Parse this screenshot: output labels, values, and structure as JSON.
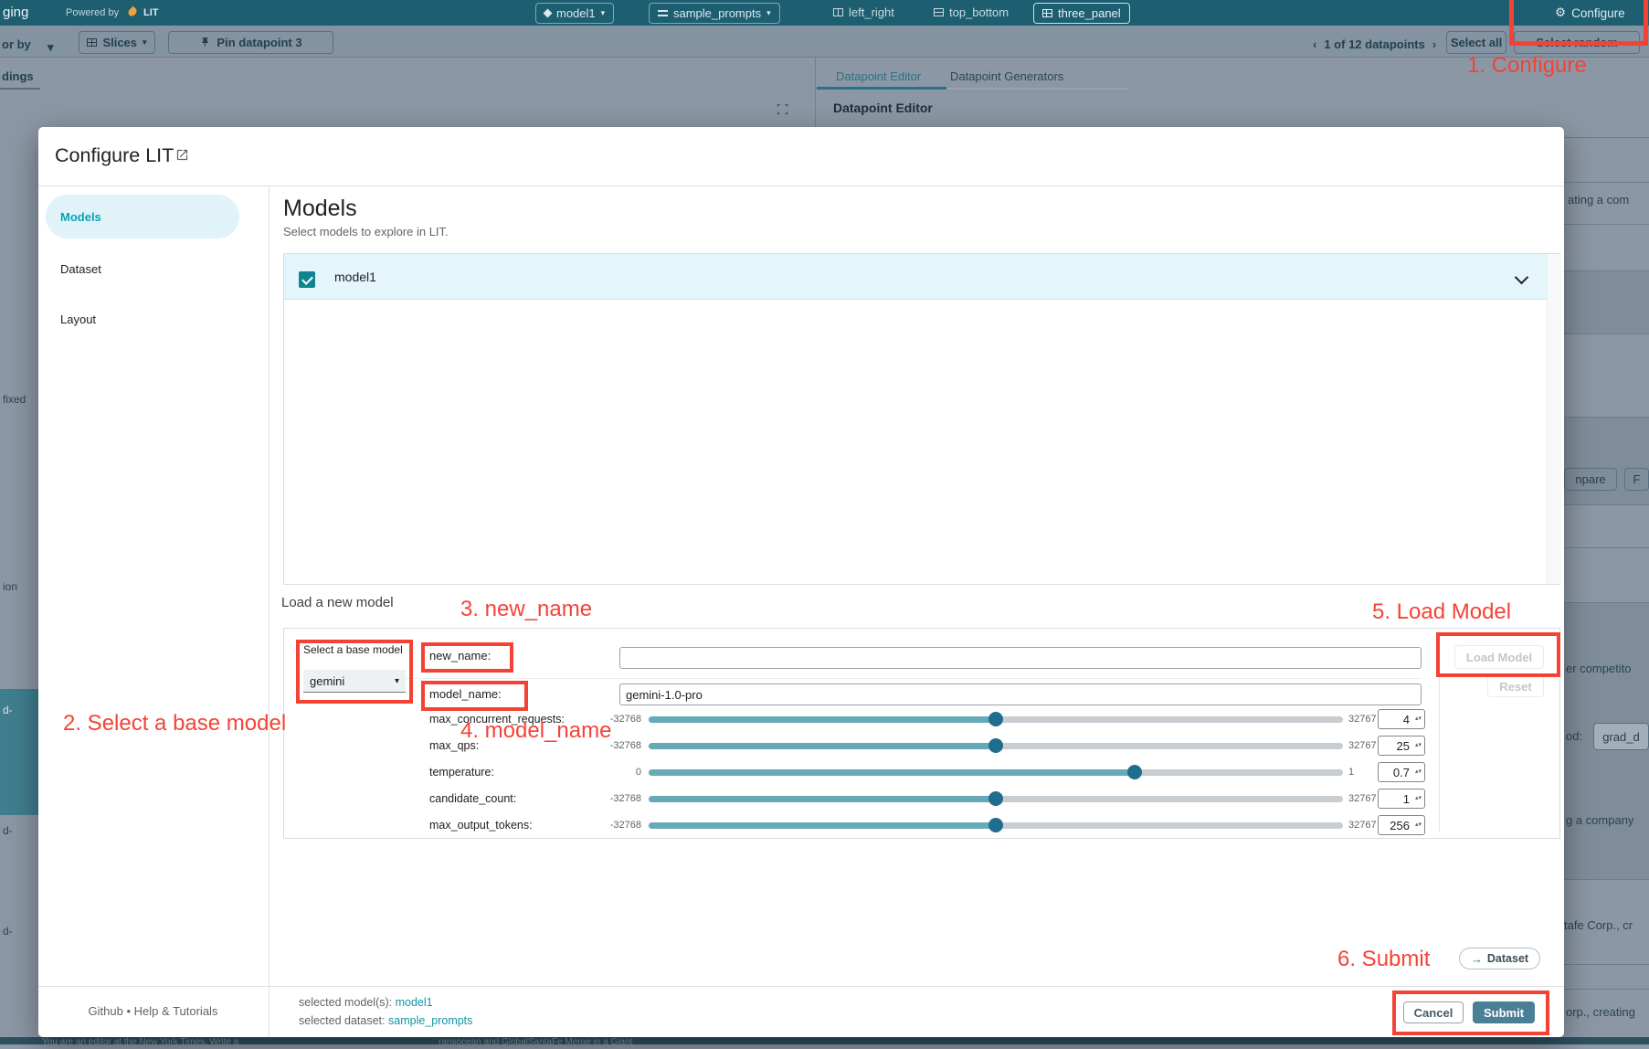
{
  "icons": {
    "caret": "▾",
    "bullet": "•",
    "gear": "⚙",
    "arrow_right": "→"
  },
  "topbar": {
    "app_fragment": "ging",
    "powered_by": "Powered by",
    "lit": "LIT",
    "model_button": "model1",
    "dataset_button": "sample_prompts",
    "layout_left_right": "left_right",
    "layout_top_bottom": "top_bottom",
    "layout_three_panel": "three_panel",
    "configure": "Configure"
  },
  "toolbar": {
    "color_by_fragment": "or by",
    "slices": "Slices",
    "pin_datapoint": "Pin datapoint 3",
    "prev": "‹",
    "pagination": "1 of 12 datapoints",
    "next": "›",
    "select_all": "Select all",
    "select_random": "Select random"
  },
  "background": {
    "left_tab_fragment": "dings",
    "tab_datapoint_editor": "Datapoint Editor",
    "tab_datapoint_generators": "Datapoint Generators",
    "panel_heading": "Datapoint Editor",
    "left_fragments": {
      "f1": "fixed",
      "f2": "ion",
      "f3": "d-",
      "f4": "d-",
      "f5": "d-"
    },
    "right_fragments": {
      "f1": "ating a com",
      "chip1": "npare",
      "chip2": "F",
      "f2": "er competito",
      "f3": "od:",
      "chip3": "grad_d",
      "f4": "g a company",
      "f5": "tafe Corp., cr",
      "f6": "orp., creating"
    },
    "bottom_fragments": {
      "left": "You are an editor at the New York Times. Write a",
      "right": "ransocean and GlobalSantaFe Merge in a Giant"
    }
  },
  "modal": {
    "title": "Configure LIT",
    "nav": {
      "models": "Models",
      "dataset": "Dataset",
      "layout": "Layout"
    },
    "heading": "Models",
    "subheading": "Select models to explore in LIT.",
    "model_row": "model1",
    "load_label": "Load a new model",
    "base_model_label": "Select a base model",
    "base_model_value": "gemini",
    "new_name_label": "new_name:",
    "new_name_value": "",
    "model_name_label": "model_name:",
    "model_name_value": "gemini-1.0-pro",
    "sliders": [
      {
        "label": "max_concurrent_requests:",
        "min": "-32768",
        "max": "32767",
        "value": "4",
        "pct": 50
      },
      {
        "label": "max_qps:",
        "min": "-32768",
        "max": "32767",
        "value": "25",
        "pct": 50
      },
      {
        "label": "temperature:",
        "min": "0",
        "max": "1",
        "value": "0.7",
        "pct": 70
      },
      {
        "label": "candidate_count:",
        "min": "-32768",
        "max": "32767",
        "value": "1",
        "pct": 50
      },
      {
        "label": "max_output_tokens:",
        "min": "-32768",
        "max": "32767",
        "value": "256",
        "pct": 50
      }
    ],
    "load_model": "Load Model",
    "reset": "Reset",
    "dataset_button": "Dataset",
    "footer": {
      "github": "Github",
      "help": "Help & Tutorials",
      "selected_models_label": "selected model(s):",
      "selected_models_value": "model1",
      "selected_dataset_label": "selected dataset:",
      "selected_dataset_value": "sample_prompts",
      "cancel": "Cancel",
      "submit": "Submit"
    }
  },
  "annotations": {
    "a1": "1. Configure",
    "a2": "2. Select a base model",
    "a3": "3. new_name",
    "a4": "4. model_name",
    "a5": "5. Load Model",
    "a6": "6. Submit"
  }
}
